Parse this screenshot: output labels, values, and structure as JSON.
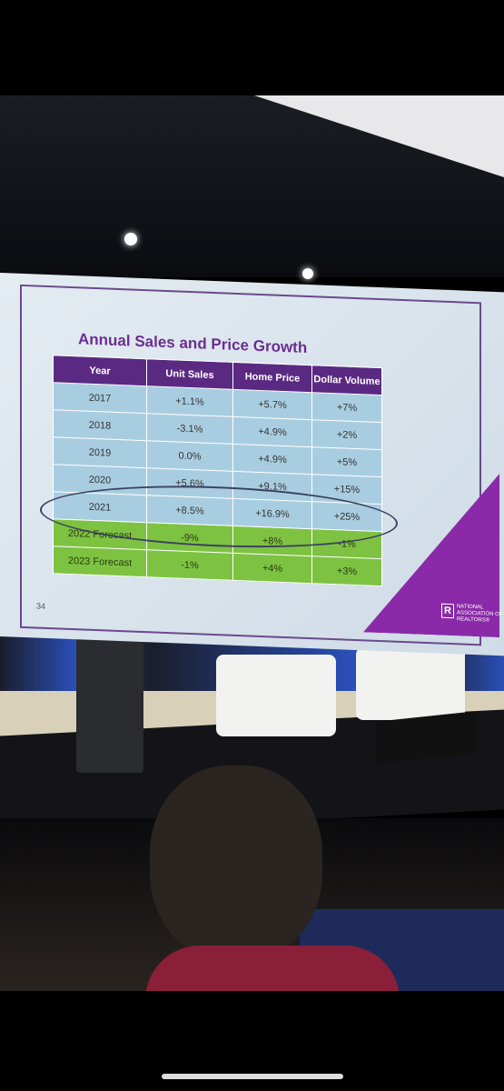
{
  "slide": {
    "title": "Annual Sales and Price Growth",
    "page_number": "34",
    "logo_mark": "R",
    "logo": "NATIONAL ASSOCIATION OF REALTORS®"
  },
  "table": {
    "header": [
      "Year",
      "Unit Sales",
      "Home Price",
      "Dollar Volume"
    ],
    "rows": [
      [
        "2017",
        "+1.1%",
        "+5.7%",
        "+7%"
      ],
      [
        "2018",
        "-3.1%",
        "+4.9%",
        "+2%"
      ],
      [
        "2019",
        "0.0%",
        "+4.9%",
        "+5%"
      ],
      [
        "2020",
        "+5.6%",
        "+9.1%",
        "+15%"
      ],
      [
        "2021",
        "+8.5%",
        "+16.9%",
        "+25%"
      ],
      [
        "2022 Forecast",
        "-9%",
        "+8%",
        "-1%"
      ],
      [
        "2023 Forecast",
        "-1%",
        "+4%",
        "+3%"
      ]
    ]
  }
}
